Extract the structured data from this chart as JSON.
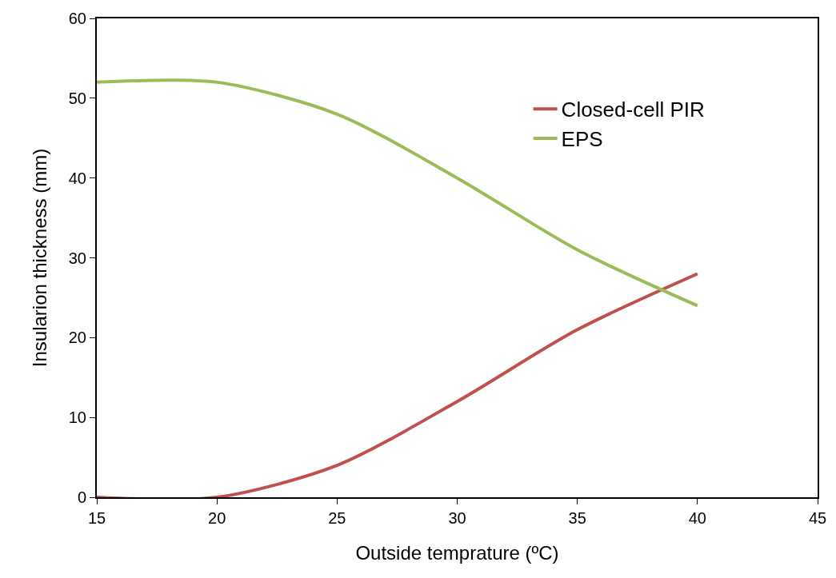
{
  "chart_data": {
    "type": "line",
    "xlabel": "Outside temprature (ºC)",
    "ylabel": "Insularion thickness (mm)",
    "x": [
      15,
      20,
      25,
      30,
      35,
      40
    ],
    "series": [
      {
        "name": "Closed-cell PIR",
        "color": "#c0504d",
        "values": [
          0,
          0,
          4,
          12,
          21,
          28
        ]
      },
      {
        "name": "EPS",
        "color": "#9bbb59",
        "values": [
          52,
          52,
          48,
          40,
          31,
          24
        ]
      }
    ],
    "xlim": [
      15,
      45
    ],
    "xticks": [
      15,
      20,
      25,
      30,
      35,
      40,
      45
    ],
    "ylim": [
      0,
      60
    ],
    "yticks": [
      0,
      10,
      20,
      30,
      40,
      50,
      60
    ],
    "grid": false,
    "legend": "top right",
    "marker": "none",
    "line_style": "solid"
  }
}
